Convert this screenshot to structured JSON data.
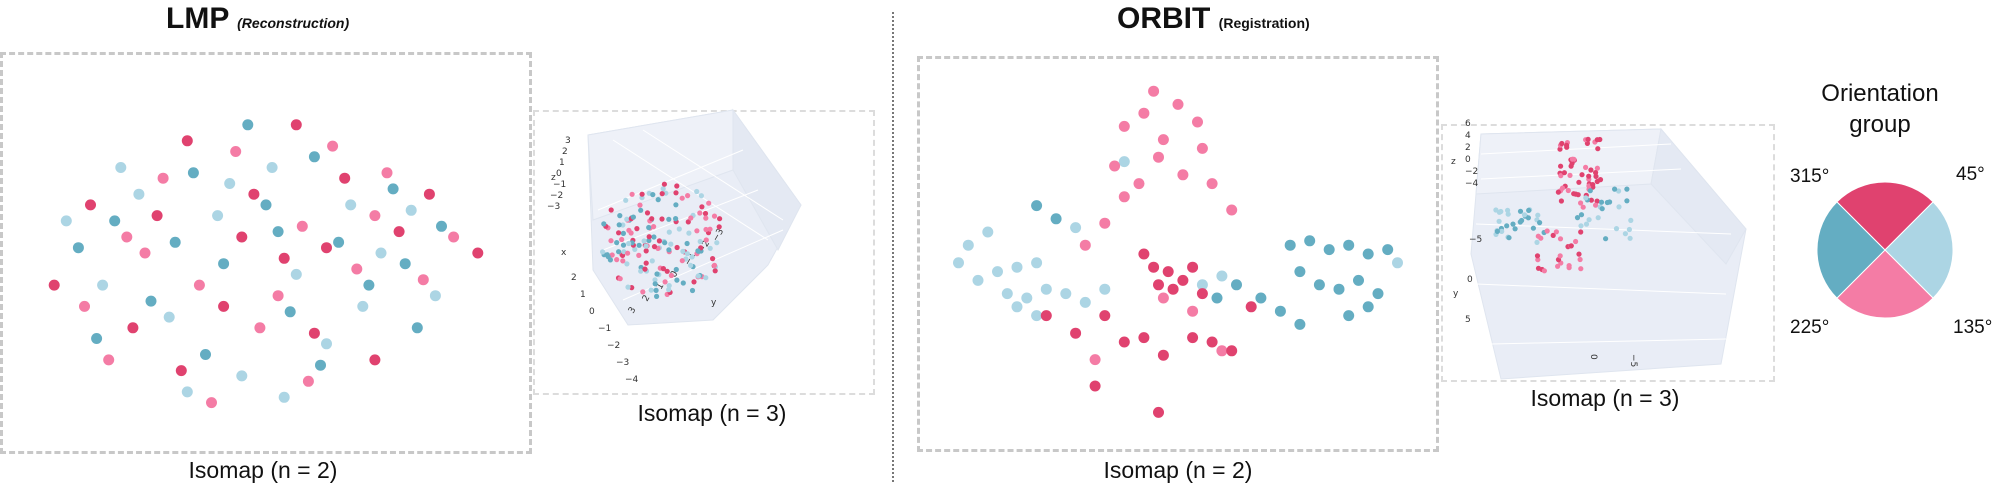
{
  "colors": {
    "c45": "#64adc2",
    "c135": "#acd5e4",
    "c225": "#f47ca5",
    "c315": "#e0426f",
    "grid": "#e6ecf5",
    "pane": "#e9edf6"
  },
  "titles": {
    "lmp": {
      "main": "LMP",
      "sub": "(Reconstruction)"
    },
    "orbit": {
      "main": "ORBIT",
      "sub": "(Registration)"
    }
  },
  "captions": {
    "lmp_2d": "Isomap (n = 2)",
    "lmp_3d": "Isomap (n = 3)",
    "orbit_2d": "Isomap (n = 2)",
    "orbit_3d": "Isomap (n = 3)"
  },
  "legend": {
    "title": "Orientation group",
    "groups": [
      {
        "label": "45°",
        "color_key": "c315"
      },
      {
        "label": "135°",
        "color_key": "c135"
      },
      {
        "label": "225°",
        "color_key": "c225"
      },
      {
        "label": "315°",
        "color_key": "c45"
      }
    ]
  },
  "axes3d": {
    "lmp": {
      "z_label": "z",
      "x_label": "x",
      "y_label": "y",
      "z_ticks": [
        "3",
        "2",
        "1",
        "0",
        "−1",
        "−2",
        "−3"
      ],
      "x_ticks": [
        "2",
        "1",
        "0",
        "−1",
        "−2",
        "−3",
        "−4"
      ],
      "y_ticks": [
        "3",
        "2",
        "1",
        "0",
        "−1",
        "−2",
        "−3"
      ]
    },
    "orbit": {
      "z_label": "z",
      "y_label": "y",
      "z_ticks": [
        "6",
        "4",
        "2",
        "0",
        "−2",
        "−4"
      ],
      "y_ticks": [
        "−5",
        "0",
        "5"
      ],
      "x_ticks": [
        "0",
        "−5"
      ]
    }
  },
  "chart_data": [
    {
      "type": "scatter",
      "title": "LMP (Reconstruction)",
      "xlabel": "Isomap (n = 2)",
      "groups": [
        "45°",
        "135°",
        "225°",
        "315°"
      ],
      "series": [
        {
          "group": "45°",
          "points": [
            [
              -3.0,
              0.1
            ],
            [
              -2.4,
              0.6
            ],
            [
              -1.8,
              -0.9
            ],
            [
              -1.1,
              1.5
            ],
            [
              -0.6,
              -0.2
            ],
            [
              -0.2,
              2.4
            ],
            [
              0.1,
              0.9
            ],
            [
              0.5,
              -1.1
            ],
            [
              0.9,
              1.8
            ],
            [
              1.3,
              0.2
            ],
            [
              1.8,
              -0.6
            ],
            [
              2.2,
              1.2
            ],
            [
              2.6,
              -1.4
            ],
            [
              3.0,
              0.5
            ],
            [
              -2.7,
              -1.6
            ],
            [
              -0.9,
              -1.9
            ],
            [
              1.0,
              -2.1
            ],
            [
              0.3,
              0.4
            ],
            [
              -1.4,
              0.2
            ],
            [
              2.4,
              -0.2
            ]
          ]
        },
        {
          "group": "135°",
          "points": [
            [
              -3.2,
              0.6
            ],
            [
              -2.6,
              -0.6
            ],
            [
              -2.0,
              1.1
            ],
            [
              -1.5,
              -1.2
            ],
            [
              -0.7,
              0.7
            ],
            [
              -0.3,
              -2.3
            ],
            [
              0.2,
              1.6
            ],
            [
              0.6,
              -0.4
            ],
            [
              1.1,
              -1.7
            ],
            [
              1.5,
              0.9
            ],
            [
              2.0,
              0.0
            ],
            [
              2.5,
              0.8
            ],
            [
              -1.2,
              -2.6
            ],
            [
              0.4,
              -2.7
            ],
            [
              2.9,
              -0.8
            ],
            [
              -2.3,
              1.6
            ],
            [
              -0.5,
              1.3
            ],
            [
              1.7,
              -1.0
            ]
          ]
        },
        {
          "group": "225°",
          "points": [
            [
              -2.9,
              -1.0
            ],
            [
              -2.2,
              0.3
            ],
            [
              -1.6,
              1.4
            ],
            [
              -1.0,
              -0.6
            ],
            [
              -0.4,
              1.9
            ],
            [
              0.0,
              -1.4
            ],
            [
              0.7,
              0.5
            ],
            [
              1.2,
              2.0
            ],
            [
              1.6,
              -0.3
            ],
            [
              2.1,
              1.5
            ],
            [
              2.7,
              -0.5
            ],
            [
              3.2,
              0.3
            ],
            [
              -2.5,
              -2.0
            ],
            [
              -0.8,
              -2.8
            ],
            [
              0.8,
              -2.4
            ],
            [
              -1.9,
              0.0
            ],
            [
              0.3,
              -0.8
            ],
            [
              1.9,
              0.7
            ]
          ]
        },
        {
          "group": "315°",
          "points": [
            [
              -3.4,
              -0.6
            ],
            [
              -2.8,
              0.9
            ],
            [
              -2.1,
              -1.4
            ],
            [
              -1.7,
              0.7
            ],
            [
              -1.2,
              2.1
            ],
            [
              -0.6,
              -1.0
            ],
            [
              -0.1,
              1.1
            ],
            [
              0.4,
              -0.1
            ],
            [
              0.9,
              -1.5
            ],
            [
              1.4,
              1.4
            ],
            [
              1.9,
              -2.0
            ],
            [
              2.3,
              0.4
            ],
            [
              2.8,
              1.1
            ],
            [
              3.6,
              0.0
            ],
            [
              -1.3,
              -2.2
            ],
            [
              0.6,
              2.4
            ],
            [
              -0.3,
              0.3
            ],
            [
              1.1,
              0.1
            ]
          ]
        }
      ]
    },
    {
      "type": "scatter3d",
      "title": "LMP (Reconstruction)",
      "xlabel": "Isomap (n = 3)",
      "axes": {
        "x": [
          -4,
          2
        ],
        "y": [
          -3,
          3
        ],
        "z": [
          -3,
          3
        ]
      }
    },
    {
      "type": "scatter",
      "title": "ORBIT (Registration)",
      "xlabel": "Isomap (n = 2)",
      "groups": [
        "45°",
        "135°",
        "225°",
        "315°"
      ],
      "series": [
        {
          "group": "45°",
          "points": [
            [
              2.2,
              0.6
            ],
            [
              2.6,
              0.7
            ],
            [
              3.0,
              0.5
            ],
            [
              3.4,
              0.6
            ],
            [
              3.8,
              0.4
            ],
            [
              4.2,
              0.5
            ],
            [
              2.4,
              0.0
            ],
            [
              2.8,
              -0.3
            ],
            [
              3.2,
              -0.4
            ],
            [
              3.6,
              -0.2
            ],
            [
              4.0,
              -0.5
            ],
            [
              1.6,
              -0.6
            ],
            [
              2.0,
              -0.9
            ],
            [
              2.4,
              -1.2
            ],
            [
              3.4,
              -1.0
            ],
            [
              3.8,
              -0.8
            ],
            [
              -3.0,
              1.5
            ],
            [
              -2.6,
              1.2
            ],
            [
              1.1,
              -0.3
            ],
            [
              0.7,
              -0.6
            ]
          ]
        },
        {
          "group": "135°",
          "points": [
            [
              -4.6,
              0.2
            ],
            [
              -4.2,
              -0.2
            ],
            [
              -3.8,
              0.0
            ],
            [
              -3.4,
              0.1
            ],
            [
              -3.0,
              0.2
            ],
            [
              -4.4,
              0.6
            ],
            [
              -4.0,
              0.9
            ],
            [
              -3.6,
              -0.5
            ],
            [
              -3.2,
              -0.6
            ],
            [
              -2.8,
              -0.4
            ],
            [
              -2.4,
              -0.5
            ],
            [
              -2.0,
              -0.7
            ],
            [
              -1.6,
              -0.4
            ],
            [
              -2.2,
              1.0
            ],
            [
              -3.0,
              -1.0
            ],
            [
              -3.4,
              -0.8
            ],
            [
              0.4,
              -0.3
            ],
            [
              0.8,
              -0.1
            ],
            [
              4.4,
              0.2
            ],
            [
              -1.2,
              2.5
            ]
          ]
        },
        {
          "group": "225°",
          "points": [
            [
              -1.2,
              3.3
            ],
            [
              -0.8,
              3.6
            ],
            [
              -0.4,
              3.0
            ],
            [
              -0.1,
              3.8
            ],
            [
              0.3,
              3.4
            ],
            [
              -0.5,
              2.6
            ],
            [
              0.0,
              2.2
            ],
            [
              0.4,
              2.8
            ],
            [
              -0.9,
              2.0
            ],
            [
              -1.4,
              2.4
            ],
            [
              -2.0,
              0.6
            ],
            [
              -1.6,
              1.1
            ],
            [
              -1.2,
              1.7
            ],
            [
              0.6,
              2.0
            ],
            [
              1.0,
              1.4
            ],
            [
              -0.4,
              -0.6
            ],
            [
              0.2,
              -0.9
            ],
            [
              -1.8,
              -2.0
            ],
            [
              0.8,
              -1.8
            ],
            [
              -0.6,
              4.1
            ]
          ]
        },
        {
          "group": "315°",
          "points": [
            [
              -0.6,
              0.1
            ],
            [
              -0.3,
              0.0
            ],
            [
              0.0,
              -0.2
            ],
            [
              -0.5,
              -0.3
            ],
            [
              -0.2,
              -0.4
            ],
            [
              0.2,
              0.1
            ],
            [
              -0.8,
              0.4
            ],
            [
              0.4,
              -0.5
            ],
            [
              -1.6,
              -1.0
            ],
            [
              -1.2,
              -1.6
            ],
            [
              -0.8,
              -1.5
            ],
            [
              -0.4,
              -1.9
            ],
            [
              0.2,
              -1.5
            ],
            [
              0.6,
              -1.6
            ],
            [
              1.0,
              -1.8
            ],
            [
              1.4,
              -0.8
            ],
            [
              -2.8,
              -1.0
            ],
            [
              -2.2,
              -1.4
            ],
            [
              -1.8,
              -2.6
            ],
            [
              -0.5,
              -3.2
            ]
          ]
        }
      ]
    },
    {
      "type": "scatter3d",
      "title": "ORBIT (Registration)",
      "xlabel": "Isomap (n = 3)",
      "axes": {
        "y": [
          -5,
          5
        ],
        "z": [
          -4,
          6
        ]
      }
    },
    {
      "type": "pie",
      "title": "Orientation group",
      "labels": [
        "45°",
        "135°",
        "225°",
        "315°"
      ],
      "values": [
        25,
        25,
        25,
        25
      ]
    }
  ]
}
